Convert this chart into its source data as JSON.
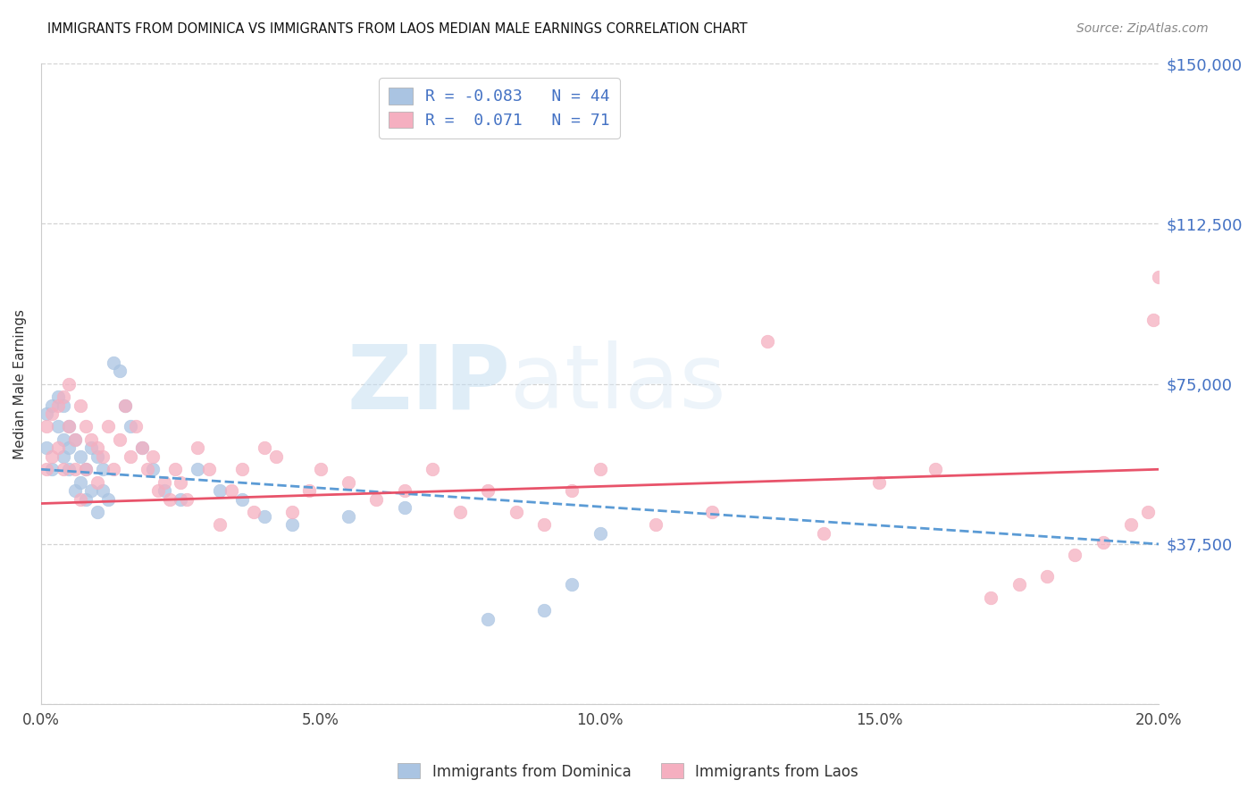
{
  "title": "IMMIGRANTS FROM DOMINICA VS IMMIGRANTS FROM LAOS MEDIAN MALE EARNINGS CORRELATION CHART",
  "source": "Source: ZipAtlas.com",
  "ylabel": "Median Male Earnings",
  "xlim": [
    0.0,
    0.2
  ],
  "ylim": [
    0,
    150000
  ],
  "yticks": [
    0,
    37500,
    75000,
    112500,
    150000
  ],
  "ytick_labels": [
    "",
    "$37,500",
    "$75,000",
    "$112,500",
    "$150,000"
  ],
  "xticks": [
    0.0,
    0.05,
    0.1,
    0.15,
    0.2
  ],
  "xtick_labels": [
    "0.0%",
    "5.0%",
    "10.0%",
    "15.0%",
    "20.0%"
  ],
  "dominica_color": "#aac4e2",
  "laos_color": "#f5afc0",
  "dominica_line_color": "#5b9bd5",
  "laos_line_color": "#e8536a",
  "legend_dominica_label": "R = -0.083   N = 44",
  "legend_laos_label": "R =  0.071   N = 71",
  "watermark_zip": "ZIP",
  "watermark_atlas": "atlas",
  "dominica_x": [
    0.001,
    0.001,
    0.002,
    0.002,
    0.003,
    0.003,
    0.004,
    0.004,
    0.004,
    0.005,
    0.005,
    0.005,
    0.006,
    0.006,
    0.007,
    0.007,
    0.008,
    0.008,
    0.009,
    0.009,
    0.01,
    0.01,
    0.011,
    0.011,
    0.012,
    0.013,
    0.014,
    0.015,
    0.016,
    0.018,
    0.02,
    0.022,
    0.025,
    0.028,
    0.032,
    0.036,
    0.04,
    0.045,
    0.055,
    0.065,
    0.08,
    0.09,
    0.095,
    0.1
  ],
  "dominica_y": [
    68000,
    60000,
    70000,
    55000,
    65000,
    72000,
    62000,
    58000,
    70000,
    65000,
    55000,
    60000,
    62000,
    50000,
    58000,
    52000,
    55000,
    48000,
    60000,
    50000,
    58000,
    45000,
    55000,
    50000,
    48000,
    80000,
    78000,
    70000,
    65000,
    60000,
    55000,
    50000,
    48000,
    55000,
    50000,
    48000,
    44000,
    42000,
    44000,
    46000,
    20000,
    22000,
    28000,
    40000
  ],
  "laos_x": [
    0.001,
    0.001,
    0.002,
    0.002,
    0.003,
    0.003,
    0.004,
    0.004,
    0.005,
    0.005,
    0.006,
    0.006,
    0.007,
    0.007,
    0.008,
    0.008,
    0.009,
    0.01,
    0.01,
    0.011,
    0.012,
    0.013,
    0.014,
    0.015,
    0.016,
    0.017,
    0.018,
    0.019,
    0.02,
    0.021,
    0.022,
    0.023,
    0.024,
    0.025,
    0.026,
    0.028,
    0.03,
    0.032,
    0.034,
    0.036,
    0.038,
    0.04,
    0.042,
    0.045,
    0.048,
    0.05,
    0.055,
    0.06,
    0.065,
    0.07,
    0.075,
    0.08,
    0.085,
    0.09,
    0.095,
    0.1,
    0.11,
    0.12,
    0.13,
    0.14,
    0.15,
    0.16,
    0.17,
    0.175,
    0.18,
    0.185,
    0.19,
    0.195,
    0.198,
    0.199,
    0.2
  ],
  "laos_y": [
    65000,
    55000,
    68000,
    58000,
    70000,
    60000,
    72000,
    55000,
    65000,
    75000,
    62000,
    55000,
    70000,
    48000,
    65000,
    55000,
    62000,
    60000,
    52000,
    58000,
    65000,
    55000,
    62000,
    70000,
    58000,
    65000,
    60000,
    55000,
    58000,
    50000,
    52000,
    48000,
    55000,
    52000,
    48000,
    60000,
    55000,
    42000,
    50000,
    55000,
    45000,
    60000,
    58000,
    45000,
    50000,
    55000,
    52000,
    48000,
    50000,
    55000,
    45000,
    50000,
    45000,
    42000,
    50000,
    55000,
    42000,
    45000,
    85000,
    40000,
    52000,
    55000,
    25000,
    28000,
    30000,
    35000,
    38000,
    42000,
    45000,
    90000,
    100000
  ]
}
